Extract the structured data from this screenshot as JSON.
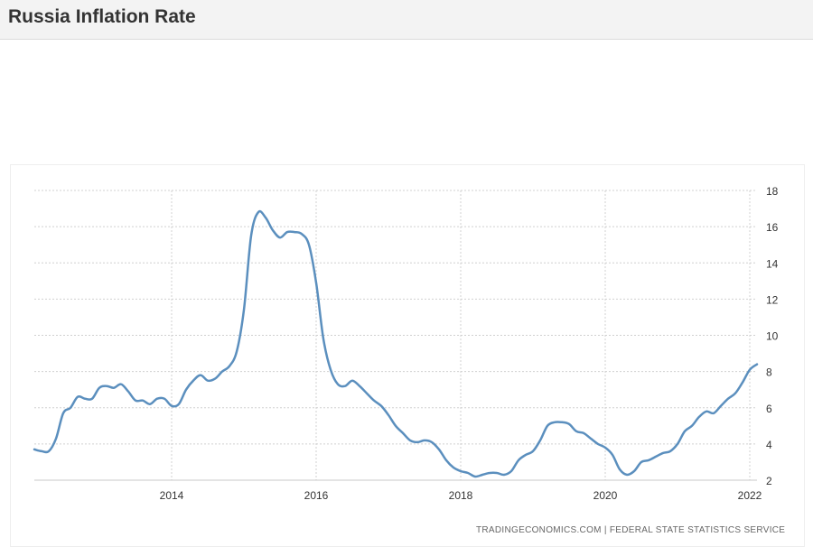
{
  "header": {
    "title": "Russia Inflation Rate"
  },
  "source_text": "TRADINGECONOMICS.COM  |  FEDERAL STATE STATISTICS SERVICE",
  "colors": {
    "line": "#5b8fbe",
    "grid": "#d0d0d0",
    "header_bg": "#f3f3f3"
  },
  "chart_data": {
    "type": "line",
    "title": "Russia Inflation Rate",
    "xlabel": "",
    "ylabel": "",
    "xlim": [
      2012.1,
      2022.1
    ],
    "ylim": [
      2,
      18
    ],
    "x_ticks": [
      "2014",
      "2016",
      "2018",
      "2020",
      "2022"
    ],
    "y_ticks": [
      "2",
      "4",
      "6",
      "8",
      "10",
      "12",
      "14",
      "16",
      "18"
    ],
    "grid": true,
    "legend": "none",
    "series": [
      {
        "x": [
          2012.1,
          2012.2,
          2012.3,
          2012.4,
          2012.5,
          2012.6,
          2012.7,
          2012.8,
          2012.9,
          2013.0,
          2013.1,
          2013.2,
          2013.3,
          2013.4,
          2013.5,
          2013.6,
          2013.7,
          2013.8,
          2013.9,
          2014.0,
          2014.1,
          2014.2,
          2014.3,
          2014.4,
          2014.5,
          2014.6,
          2014.7,
          2014.8,
          2014.9,
          2015.0,
          2015.1,
          2015.2,
          2015.3,
          2015.4,
          2015.5,
          2015.6,
          2015.7,
          2015.8,
          2015.9,
          2016.0,
          2016.1,
          2016.2,
          2016.3,
          2016.4,
          2016.5,
          2016.6,
          2016.7,
          2016.8,
          2016.9,
          2017.0,
          2017.1,
          2017.2,
          2017.3,
          2017.4,
          2017.5,
          2017.6,
          2017.7,
          2017.8,
          2017.9,
          2018.0,
          2018.1,
          2018.2,
          2018.3,
          2018.4,
          2018.5,
          2018.6,
          2018.7,
          2018.8,
          2018.9,
          2019.0,
          2019.1,
          2019.2,
          2019.3,
          2019.4,
          2019.5,
          2019.6,
          2019.7,
          2019.8,
          2019.9,
          2020.0,
          2020.1,
          2020.2,
          2020.3,
          2020.4,
          2020.5,
          2020.6,
          2020.7,
          2020.8,
          2020.9,
          2021.0,
          2021.1,
          2021.2,
          2021.3,
          2021.4,
          2021.5,
          2021.6,
          2021.7,
          2021.8,
          2021.9,
          2022.0,
          2022.1
        ],
        "values": [
          3.7,
          3.6,
          3.6,
          4.3,
          5.7,
          6.0,
          6.6,
          6.5,
          6.5,
          7.1,
          7.2,
          7.1,
          7.3,
          6.9,
          6.4,
          6.4,
          6.2,
          6.5,
          6.5,
          6.1,
          6.2,
          7.0,
          7.5,
          7.8,
          7.5,
          7.6,
          8.0,
          8.3,
          9.1,
          11.4,
          15.5,
          16.8,
          16.5,
          15.8,
          15.4,
          15.7,
          15.7,
          15.6,
          15.0,
          12.9,
          9.8,
          8.1,
          7.3,
          7.2,
          7.5,
          7.2,
          6.8,
          6.4,
          6.1,
          5.6,
          5.0,
          4.6,
          4.2,
          4.1,
          4.2,
          4.1,
          3.7,
          3.1,
          2.7,
          2.5,
          2.4,
          2.2,
          2.3,
          2.4,
          2.4,
          2.3,
          2.5,
          3.1,
          3.4,
          3.6,
          4.2,
          5.0,
          5.2,
          5.2,
          5.1,
          4.7,
          4.6,
          4.3,
          4.0,
          3.8,
          3.4,
          2.6,
          2.3,
          2.5,
          3.0,
          3.1,
          3.3,
          3.5,
          3.6,
          4.0,
          4.7,
          5.0,
          5.5,
          5.8,
          5.7,
          6.1,
          6.5,
          6.8,
          7.4,
          8.1,
          8.4
        ]
      }
    ]
  }
}
